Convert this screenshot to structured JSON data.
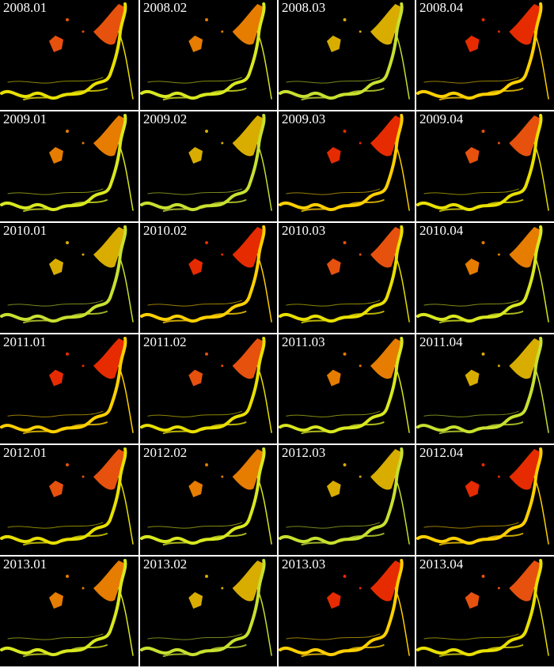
{
  "rows": [
    [
      "2008.01",
      "2008.02",
      "2008.03",
      "2008.04"
    ],
    [
      "2009.01",
      "2009.02",
      "2009.03",
      "2009.04"
    ],
    [
      "2010.01",
      "2010.02",
      "2010.03",
      "2010.04"
    ],
    [
      "2011.01",
      "2011.02",
      "2011.03",
      "2011.04"
    ],
    [
      "2012.01",
      "2012.02",
      "2012.03",
      "2012.04"
    ],
    [
      "2013.01",
      "2013.02",
      "2013.03",
      "2013.04"
    ]
  ]
}
